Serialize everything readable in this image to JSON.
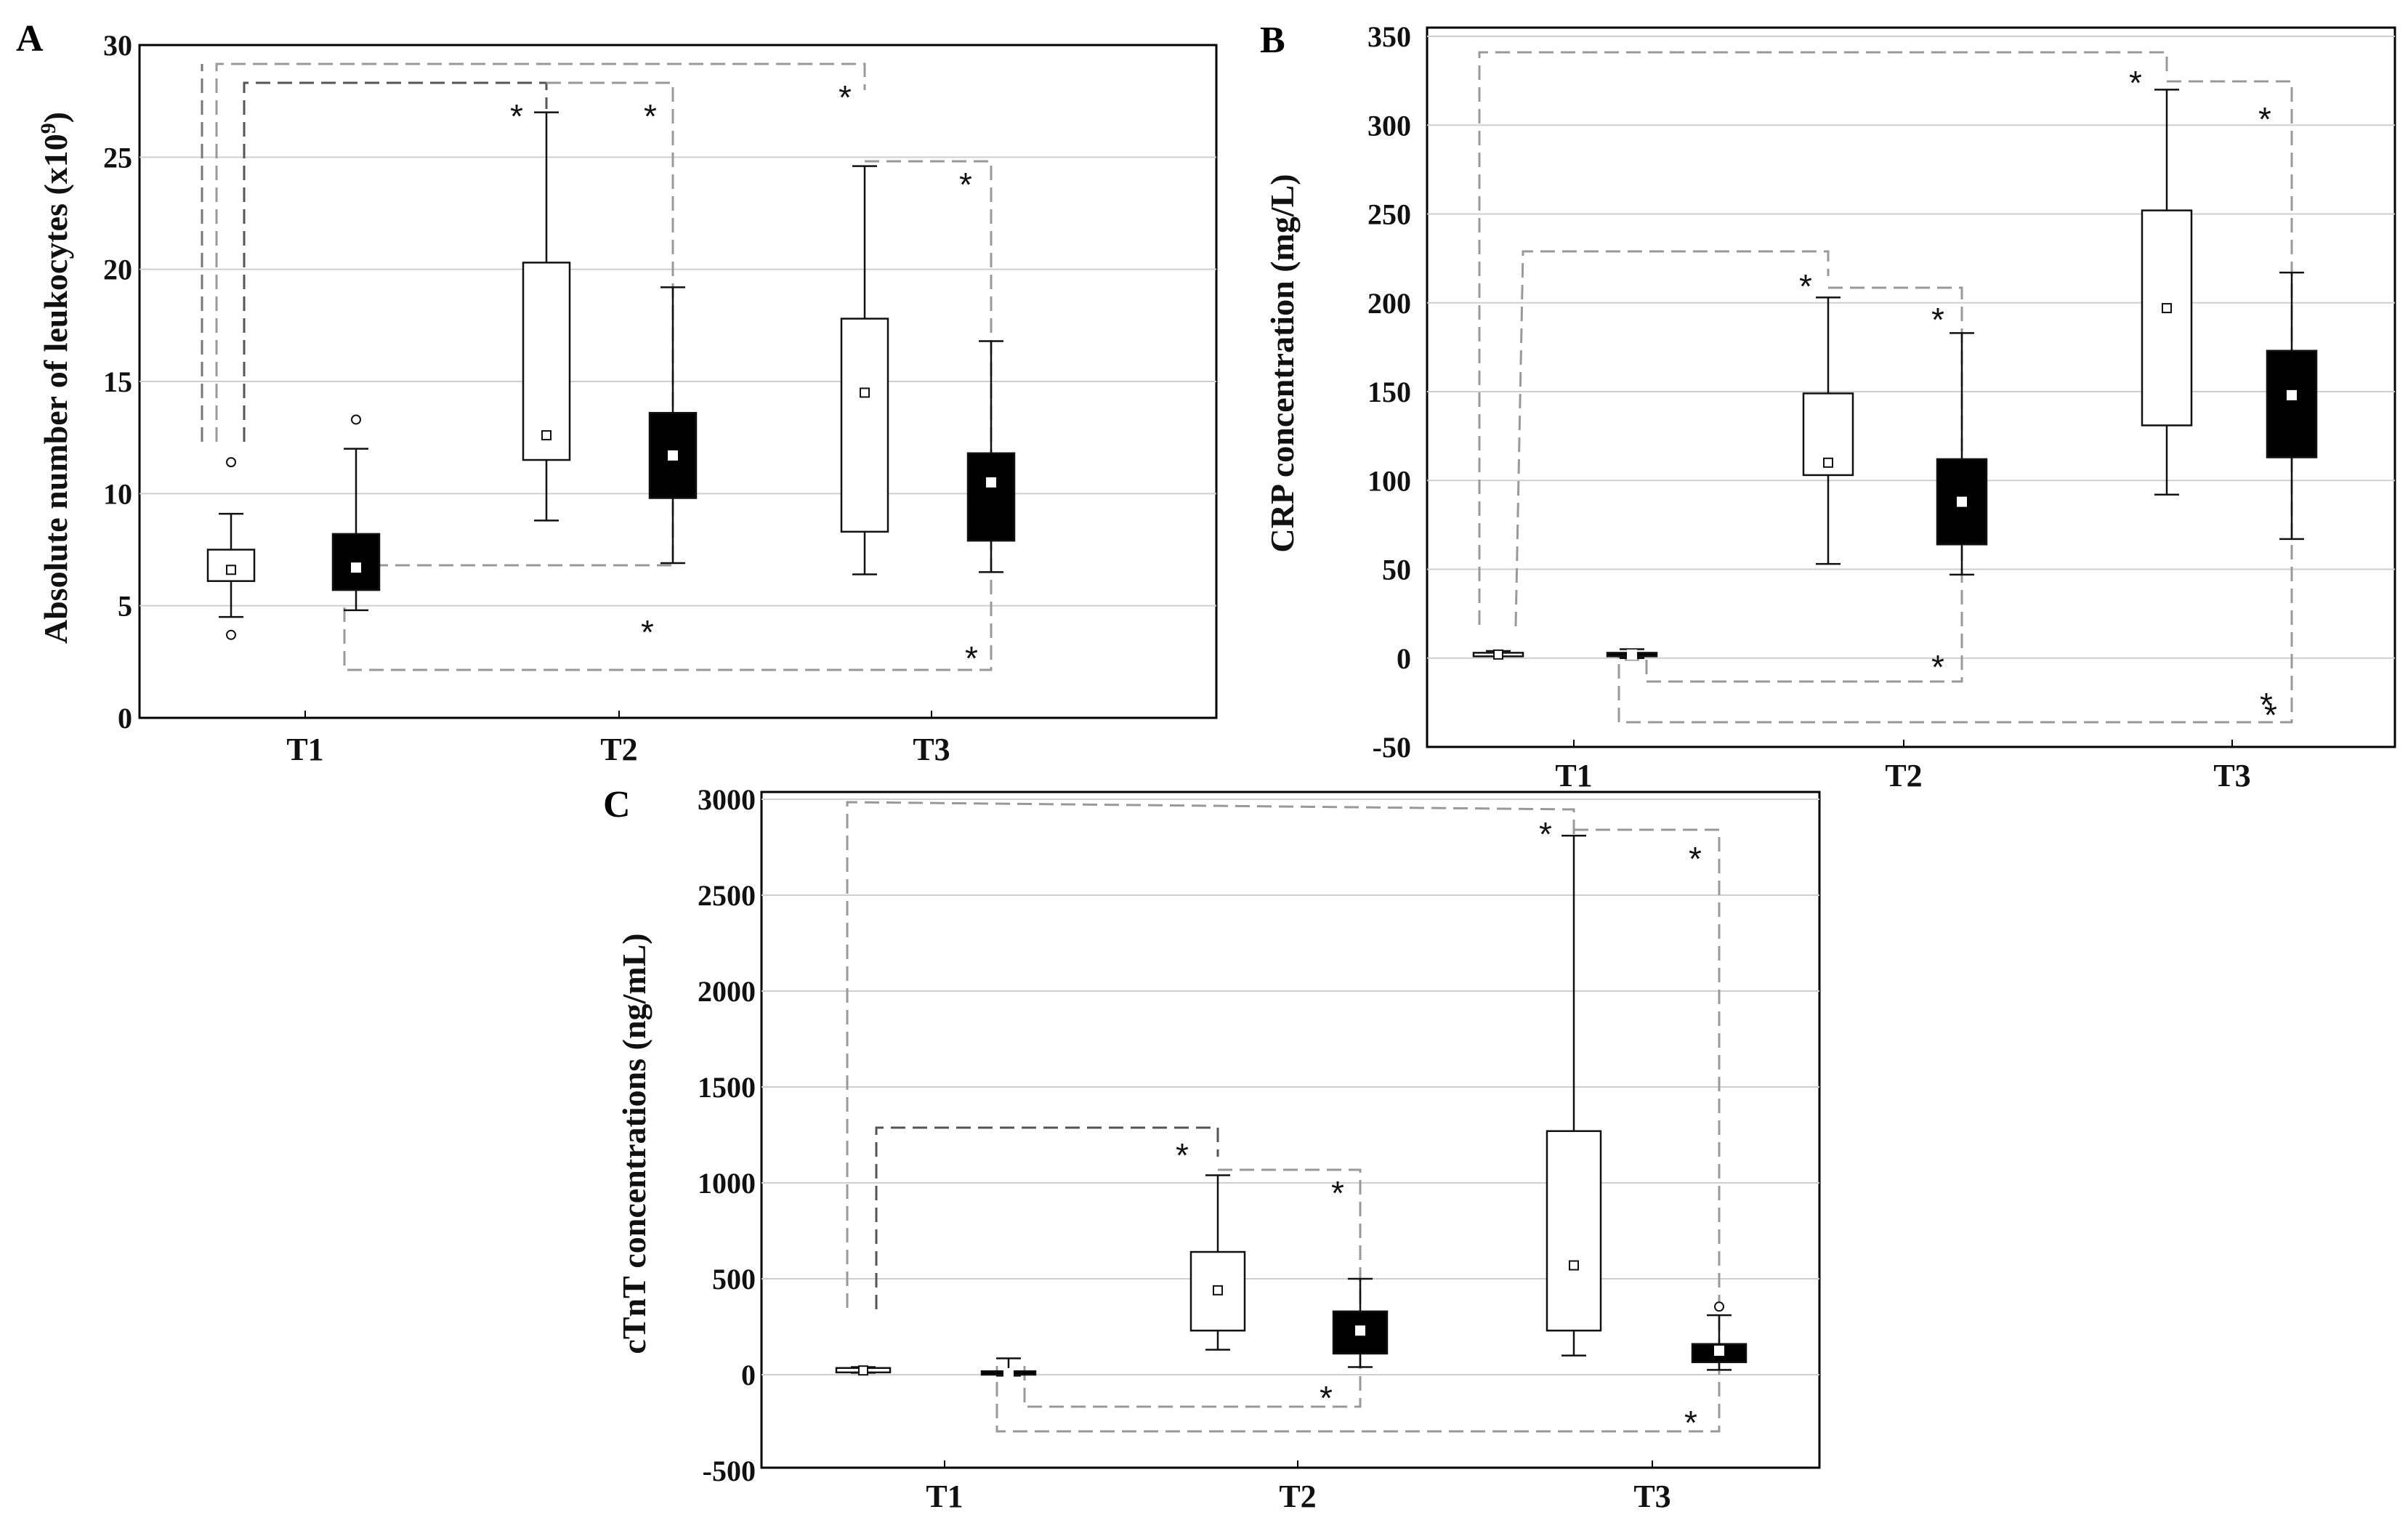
{
  "chart_data": [
    {
      "panel": "A",
      "type": "boxplot",
      "ylabel": "Absolute number of leukocytes (x10",
      "ylabel_sup": "9",
      "ylabel_end": ")",
      "ylim": [
        0,
        30
      ],
      "yticks": [
        0,
        5,
        10,
        15,
        20,
        25,
        30
      ],
      "yticklabels": [
        "0",
        "5",
        "10",
        "15",
        "20",
        "25",
        "30"
      ],
      "categories": [
        "T1",
        "T2",
        "T3"
      ],
      "grid": true,
      "boxes": [
        {
          "time": "T1",
          "group": "white",
          "whisker_low": 4.5,
          "q1": 6.1,
          "median": 6.6,
          "q3": 7.5,
          "whisker_high": 9.1,
          "outliers": [
            3.7,
            11.4
          ]
        },
        {
          "time": "T1",
          "group": "black",
          "whisker_low": 4.8,
          "q1": 5.7,
          "median": 6.7,
          "q3": 8.2,
          "whisker_high": 12.0,
          "outliers": [
            13.3
          ]
        },
        {
          "time": "T2",
          "group": "white",
          "whisker_low": 8.8,
          "q1": 11.5,
          "median": 12.6,
          "q3": 20.3,
          "whisker_high": 27.0,
          "outliers": []
        },
        {
          "time": "T2",
          "group": "black",
          "whisker_low": 6.9,
          "q1": 9.8,
          "median": 11.7,
          "q3": 13.6,
          "whisker_high": 19.2,
          "outliers": []
        },
        {
          "time": "T3",
          "group": "white",
          "whisker_low": 6.4,
          "q1": 8.3,
          "median": 14.5,
          "q3": 17.8,
          "whisker_high": 24.6,
          "outliers": []
        },
        {
          "time": "T3",
          "group": "black",
          "whisker_low": 6.5,
          "q1": 7.9,
          "median": 10.5,
          "q3": 11.8,
          "whisker_high": 16.8,
          "outliers": []
        }
      ],
      "annotations": [
        "*",
        "*",
        "*",
        "*",
        "*",
        "*"
      ]
    },
    {
      "panel": "B",
      "type": "boxplot",
      "ylabel": "CRP concentration (mg/L)",
      "ylim": [
        -50,
        350
      ],
      "yticks": [
        -50,
        0,
        50,
        100,
        150,
        200,
        250,
        300,
        350
      ],
      "yticklabels": [
        "-50",
        "0",
        "50",
        "100",
        "150",
        "200",
        "250",
        "300",
        "350"
      ],
      "categories": [
        "T1",
        "T2",
        "T3"
      ],
      "grid": true,
      "boxes": [
        {
          "time": "T1",
          "group": "white",
          "whisker_low": 1,
          "q1": 1,
          "median": 2,
          "q3": 3,
          "whisker_high": 4,
          "outliers": []
        },
        {
          "time": "T1",
          "group": "black",
          "whisker_low": 0,
          "q1": 1,
          "median": 2,
          "q3": 3,
          "whisker_high": 5,
          "outliers": []
        },
        {
          "time": "T2",
          "group": "white",
          "whisker_low": 53,
          "q1": 103,
          "median": 110,
          "q3": 149,
          "whisker_high": 203,
          "outliers": []
        },
        {
          "time": "T2",
          "group": "black",
          "whisker_low": 47,
          "q1": 64,
          "median": 88,
          "q3": 112,
          "whisker_high": 183,
          "outliers": []
        },
        {
          "time": "T3",
          "group": "white",
          "whisker_low": 92,
          "q1": 131,
          "median": 197,
          "q3": 252,
          "whisker_high": 320,
          "outliers": []
        },
        {
          "time": "T3",
          "group": "black",
          "whisker_low": 67,
          "q1": 113,
          "median": 148,
          "q3": 173,
          "whisker_high": 217,
          "outliers": []
        }
      ],
      "annotations": [
        "*",
        "*",
        "*",
        "*",
        "*",
        "*",
        "*"
      ]
    },
    {
      "panel": "C",
      "type": "boxplot",
      "ylabel": "cTnT concentrations (ng/mL)",
      "ylim": [
        -500,
        3000
      ],
      "yticks": [
        -500,
        0,
        500,
        1000,
        1500,
        2000,
        2500,
        3000
      ],
      "yticklabels": [
        "-500",
        "0",
        "500",
        "1000",
        "1500",
        "2000",
        "2500",
        "3000"
      ],
      "categories": [
        "T1",
        "T2",
        "T3"
      ],
      "grid": true,
      "boxes": [
        {
          "time": "T1",
          "group": "white",
          "whisker_low": 10,
          "q1": 12,
          "median": 22,
          "q3": 35,
          "whisker_high": 40,
          "outliers": []
        },
        {
          "time": "T1",
          "group": "black",
          "whisker_low": -5,
          "q1": 0,
          "median": 8,
          "q3": 18,
          "whisker_high": 85,
          "outliers": []
        },
        {
          "time": "T2",
          "group": "white",
          "whisker_low": 130,
          "q1": 230,
          "median": 440,
          "q3": 640,
          "whisker_high": 1040,
          "outliers": []
        },
        {
          "time": "T2",
          "group": "black",
          "whisker_low": 40,
          "q1": 110,
          "median": 230,
          "q3": 330,
          "whisker_high": 500,
          "outliers": []
        },
        {
          "time": "T3",
          "group": "white",
          "whisker_low": 100,
          "q1": 230,
          "median": 570,
          "q3": 1270,
          "whisker_high": 2810,
          "outliers": []
        },
        {
          "time": "T3",
          "group": "black",
          "whisker_low": 25,
          "q1": 65,
          "median": 125,
          "q3": 160,
          "whisker_high": 310,
          "outliers": [
            355
          ]
        }
      ],
      "annotations": [
        "*",
        "*",
        "*",
        "*",
        "*",
        "*"
      ]
    }
  ]
}
